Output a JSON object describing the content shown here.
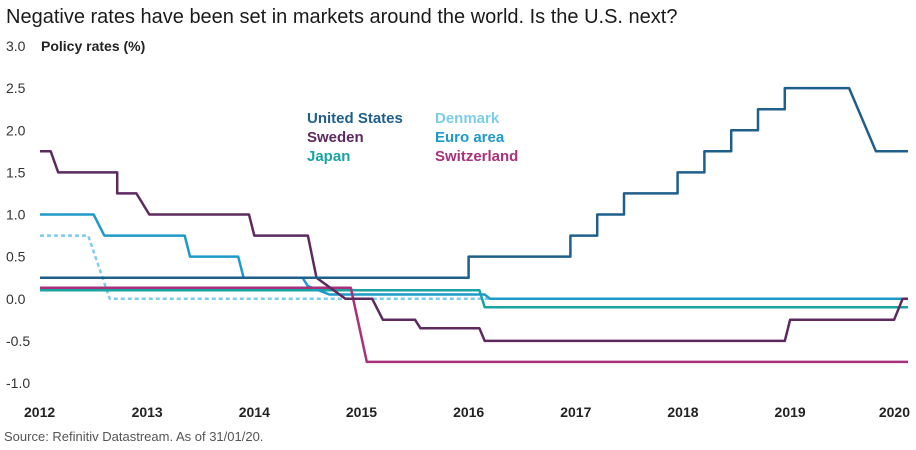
{
  "title": "Negative rates have been set in markets around the world. Is the U.S. next?",
  "source": "Source: Refinitiv Datastream. As of 31/01/20.",
  "chart_data": {
    "type": "line",
    "ylabel": "Policy rates (%)",
    "ylim": [
      -1.0,
      3.0
    ],
    "yticks": [
      "3.0",
      "2.5",
      "2.0",
      "1.5",
      "1.0",
      "0.5",
      "0.0",
      "-0.5",
      "-1.0"
    ],
    "xlim": [
      2012.0,
      2020.1
    ],
    "xticks": [
      "2012",
      "2013",
      "2014",
      "2015",
      "2016",
      "2017",
      "2018",
      "2019",
      "2020"
    ],
    "grid": false,
    "legend_position": "upper-center",
    "series": [
      {
        "name": "United States",
        "color": "#1f5f8b",
        "dashed": false,
        "points": [
          [
            2012.0,
            0.25
          ],
          [
            2016.0,
            0.25
          ],
          [
            2016.0,
            0.5
          ],
          [
            2016.95,
            0.5
          ],
          [
            2016.95,
            0.75
          ],
          [
            2017.2,
            0.75
          ],
          [
            2017.2,
            1.0
          ],
          [
            2017.45,
            1.0
          ],
          [
            2017.45,
            1.25
          ],
          [
            2017.95,
            1.25
          ],
          [
            2017.95,
            1.5
          ],
          [
            2018.2,
            1.5
          ],
          [
            2018.2,
            1.75
          ],
          [
            2018.45,
            1.75
          ],
          [
            2018.45,
            2.0
          ],
          [
            2018.7,
            2.0
          ],
          [
            2018.7,
            2.25
          ],
          [
            2018.95,
            2.25
          ],
          [
            2018.95,
            2.5
          ],
          [
            2019.55,
            2.5
          ],
          [
            2019.8,
            1.75
          ],
          [
            2020.1,
            1.75
          ]
        ]
      },
      {
        "name": "Sweden",
        "color": "#5c2a5e",
        "dashed": false,
        "points": [
          [
            2012.0,
            1.75
          ],
          [
            2012.1,
            1.75
          ],
          [
            2012.17,
            1.5
          ],
          [
            2012.72,
            1.5
          ],
          [
            2012.72,
            1.25
          ],
          [
            2012.9,
            1.25
          ],
          [
            2013.02,
            1.0
          ],
          [
            2013.95,
            1.0
          ],
          [
            2014.0,
            0.75
          ],
          [
            2014.5,
            0.75
          ],
          [
            2014.58,
            0.25
          ],
          [
            2014.85,
            0.0
          ],
          [
            2015.1,
            0.0
          ],
          [
            2015.2,
            -0.25
          ],
          [
            2015.5,
            -0.25
          ],
          [
            2015.55,
            -0.35
          ],
          [
            2016.1,
            -0.35
          ],
          [
            2016.15,
            -0.5
          ],
          [
            2018.95,
            -0.5
          ],
          [
            2019.0,
            -0.25
          ],
          [
            2019.97,
            -0.25
          ],
          [
            2020.05,
            0.0
          ],
          [
            2020.1,
            0.0
          ]
        ]
      },
      {
        "name": "Japan",
        "color": "#1aa3a3",
        "dashed": false,
        "points": [
          [
            2012.0,
            0.1
          ],
          [
            2016.1,
            0.1
          ],
          [
            2016.15,
            -0.1
          ],
          [
            2020.1,
            -0.1
          ]
        ]
      },
      {
        "name": "Denmark",
        "color": "#7ccde8",
        "dashed": true,
        "points": [
          [
            2012.0,
            0.75
          ],
          [
            2012.45,
            0.75
          ],
          [
            2012.65,
            0.0
          ],
          [
            2020.1,
            0.0
          ]
        ]
      },
      {
        "name": "Euro area",
        "color": "#1e9ac9",
        "dashed": false,
        "points": [
          [
            2012.0,
            1.0
          ],
          [
            2012.5,
            1.0
          ],
          [
            2012.6,
            0.75
          ],
          [
            2013.35,
            0.75
          ],
          [
            2013.4,
            0.5
          ],
          [
            2013.85,
            0.5
          ],
          [
            2013.9,
            0.25
          ],
          [
            2014.45,
            0.25
          ],
          [
            2014.5,
            0.15
          ],
          [
            2014.7,
            0.05
          ],
          [
            2016.15,
            0.05
          ],
          [
            2016.2,
            0.0
          ],
          [
            2020.1,
            0.0
          ]
        ]
      },
      {
        "name": "Switzerland",
        "color": "#a8317a",
        "dashed": false,
        "points": [
          [
            2012.0,
            0.13
          ],
          [
            2014.9,
            0.13
          ],
          [
            2015.05,
            -0.75
          ],
          [
            2020.1,
            -0.75
          ]
        ]
      }
    ]
  },
  "legend_layout": [
    [
      "United States",
      "Denmark"
    ],
    [
      "Sweden",
      "Euro area"
    ],
    [
      "Japan",
      "Switzerland"
    ]
  ]
}
